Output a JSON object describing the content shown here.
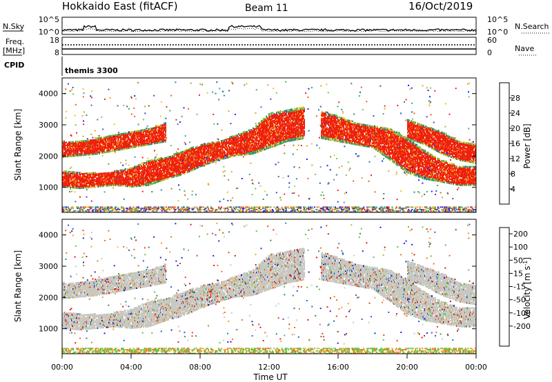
{
  "header": {
    "title": "Hokkaido East (fitACF)",
    "beam": "Beam 11",
    "date": "16/Oct/2019"
  },
  "top_panels": {
    "nsky_label": "N.Sky",
    "nsearch_label": "N.Search",
    "count_ticks": [
      "10^5",
      "10^0"
    ],
    "freq_label_1": "Freq.",
    "freq_label_2": "[MHz]",
    "freq_ticks": [
      "18",
      "8"
    ],
    "nave_label": "Nave",
    "nave_ticks": [
      "60",
      "0"
    ],
    "cpid_label": "CPID",
    "cpid_value": "themis 3300"
  },
  "chart_data": [
    {
      "type": "heatmap",
      "name": "power",
      "ylabel": "Slant Range [km]",
      "ylim": [
        200,
        4500
      ],
      "xlim": [
        0,
        24
      ],
      "yticks": [
        1000,
        2000,
        3000,
        4000
      ],
      "colorbar_label": "Power [dB]",
      "colorbar_ticks": [
        "4",
        "8",
        "12",
        "16",
        "20",
        "24",
        "28"
      ],
      "colorbar_range": [
        0,
        32
      ],
      "colors": [
        "#1a1aff",
        "#2a4fc0",
        "#2f7f8a",
        "#3aa86a",
        "#7fc23a",
        "#e8c02a",
        "#f39a1e",
        "#f05a14",
        "#ee2010"
      ],
      "echo_bands": [
        {
          "x": [
            0,
            1,
            2,
            3,
            4,
            5,
            6,
            7,
            8,
            9,
            10,
            11,
            12,
            13,
            14
          ],
          "y_low": [
            1050,
            1000,
            1050,
            1100,
            1050,
            1100,
            1300,
            1450,
            1700,
            1900,
            2050,
            2100,
            2300,
            2500,
            2600
          ],
          "y_high": [
            1550,
            1500,
            1500,
            1550,
            1650,
            1900,
            2000,
            2200,
            2400,
            2500,
            2700,
            2900,
            3400,
            3500,
            3600
          ]
        },
        {
          "x": [
            0,
            1,
            2,
            3,
            4,
            5,
            6
          ],
          "y_low": [
            2000,
            2050,
            2100,
            2200,
            2300,
            2400,
            2500
          ],
          "y_high": [
            2500,
            2500,
            2600,
            2700,
            2800,
            2900,
            3100
          ]
        },
        {
          "x": [
            15,
            16,
            17,
            18,
            19,
            20,
            21,
            22,
            23,
            24
          ],
          "y_low": [
            2600,
            2500,
            2400,
            2300,
            1900,
            1500,
            1300,
            1200,
            1100,
            1100
          ],
          "y_high": [
            3500,
            3300,
            3100,
            3000,
            2900,
            2600,
            2200,
            1900,
            1700,
            1700
          ]
        },
        {
          "x": [
            20,
            21,
            22,
            23,
            24
          ],
          "y_low": [
            2600,
            2400,
            2100,
            1900,
            1800
          ],
          "y_high": [
            3200,
            3000,
            2800,
            2500,
            2400
          ]
        }
      ]
    },
    {
      "type": "heatmap",
      "name": "velocity",
      "ylabel": "Slant Range [km]",
      "ylim": [
        200,
        4500
      ],
      "xlim": [
        0,
        24
      ],
      "yticks": [
        1000,
        2000,
        3000,
        4000
      ],
      "xticks": [
        "00:00",
        "04:00",
        "08:00",
        "12:00",
        "16:00",
        "20:00",
        "00:00"
      ],
      "xlabel": "Time UT",
      "colorbar_label": "Velocity [m s",
      "colorbar_label_sup": "-1",
      "colorbar_label_end": "]",
      "colorbar_ticks": [
        "200",
        "100",
        "50",
        "15",
        "-15",
        "-50",
        "-100",
        "-200"
      ],
      "colors": [
        "#1a22c8",
        "#2a58d0",
        "#2f8a72",
        "#5fc23a",
        "#c8c8c0",
        "#f0a020",
        "#f07018",
        "#ee3a12",
        "#e01010"
      ]
    }
  ]
}
